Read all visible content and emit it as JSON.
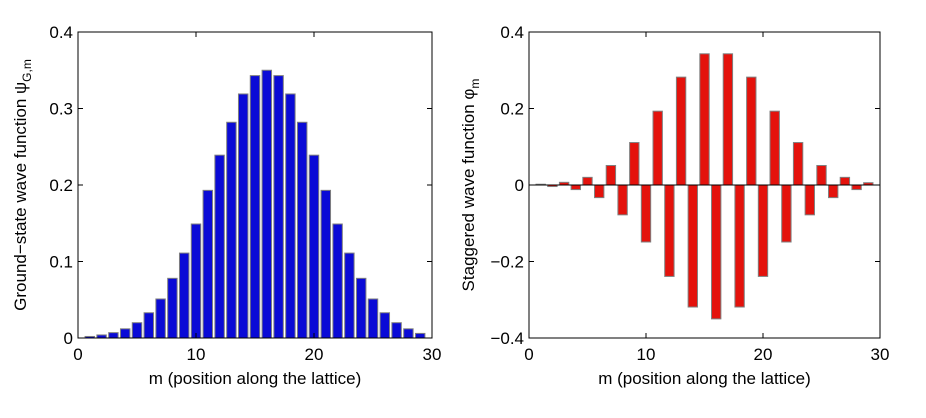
{
  "chart_data": [
    {
      "type": "bar",
      "title": "",
      "xlabel": "m (position along the lattice)",
      "ylabel_main": "Ground−state wave function ψ",
      "ylabel_sub": "G,m",
      "xlim": [
        0,
        30
      ],
      "ylim": [
        0,
        0.4
      ],
      "xticks": [
        "0",
        "10",
        "20",
        "30"
      ],
      "yticks": [
        "0",
        "0.1",
        "0.2",
        "0.3",
        "0.4"
      ],
      "xtick_values": [
        0,
        10,
        20,
        30
      ],
      "ytick_values": [
        0,
        0.1,
        0.2,
        0.3,
        0.4
      ],
      "grid": false,
      "bar_color": "#0a0ad6",
      "edge_color": "#7f7f7f",
      "x": [
        1,
        2,
        3,
        4,
        5,
        6,
        7,
        8,
        9,
        10,
        11,
        12,
        13,
        14,
        15,
        16,
        17,
        18,
        19,
        20,
        21,
        22,
        23,
        24,
        25,
        26,
        27,
        28,
        29
      ],
      "values": [
        0.002,
        0.004,
        0.007,
        0.012,
        0.02,
        0.033,
        0.051,
        0.078,
        0.111,
        0.149,
        0.193,
        0.239,
        0.282,
        0.319,
        0.343,
        0.35,
        0.343,
        0.319,
        0.282,
        0.239,
        0.193,
        0.149,
        0.111,
        0.078,
        0.051,
        0.033,
        0.02,
        0.012,
        0.006
      ]
    },
    {
      "type": "bar",
      "title": "",
      "xlabel": "m (position along the lattice)",
      "ylabel_main": "Staggered wave function φ",
      "ylabel_sub": "m",
      "xlim": [
        0,
        30
      ],
      "ylim": [
        -0.4,
        0.4
      ],
      "xticks": [
        "0",
        "10",
        "20",
        "30"
      ],
      "yticks": [
        "−0.4",
        "−0.2",
        "0",
        "0.2",
        "0.4"
      ],
      "xtick_values": [
        0,
        10,
        20,
        30
      ],
      "ytick_values": [
        -0.4,
        -0.2,
        0,
        0.2,
        0.4
      ],
      "grid": false,
      "bar_color": "#e4120c",
      "edge_color": "#7f7f7f",
      "x": [
        1,
        2,
        3,
        4,
        5,
        6,
        7,
        8,
        9,
        10,
        11,
        12,
        13,
        14,
        15,
        16,
        17,
        18,
        19,
        20,
        21,
        22,
        23,
        24,
        25,
        26,
        27,
        28,
        29
      ],
      "values": [
        0.002,
        -0.004,
        0.007,
        -0.012,
        0.02,
        -0.033,
        0.051,
        -0.078,
        0.111,
        -0.149,
        0.193,
        -0.239,
        0.282,
        -0.319,
        0.343,
        -0.35,
        0.343,
        -0.319,
        0.282,
        -0.239,
        0.193,
        -0.149,
        0.111,
        -0.078,
        0.051,
        -0.033,
        0.02,
        -0.012,
        0.006
      ]
    }
  ]
}
